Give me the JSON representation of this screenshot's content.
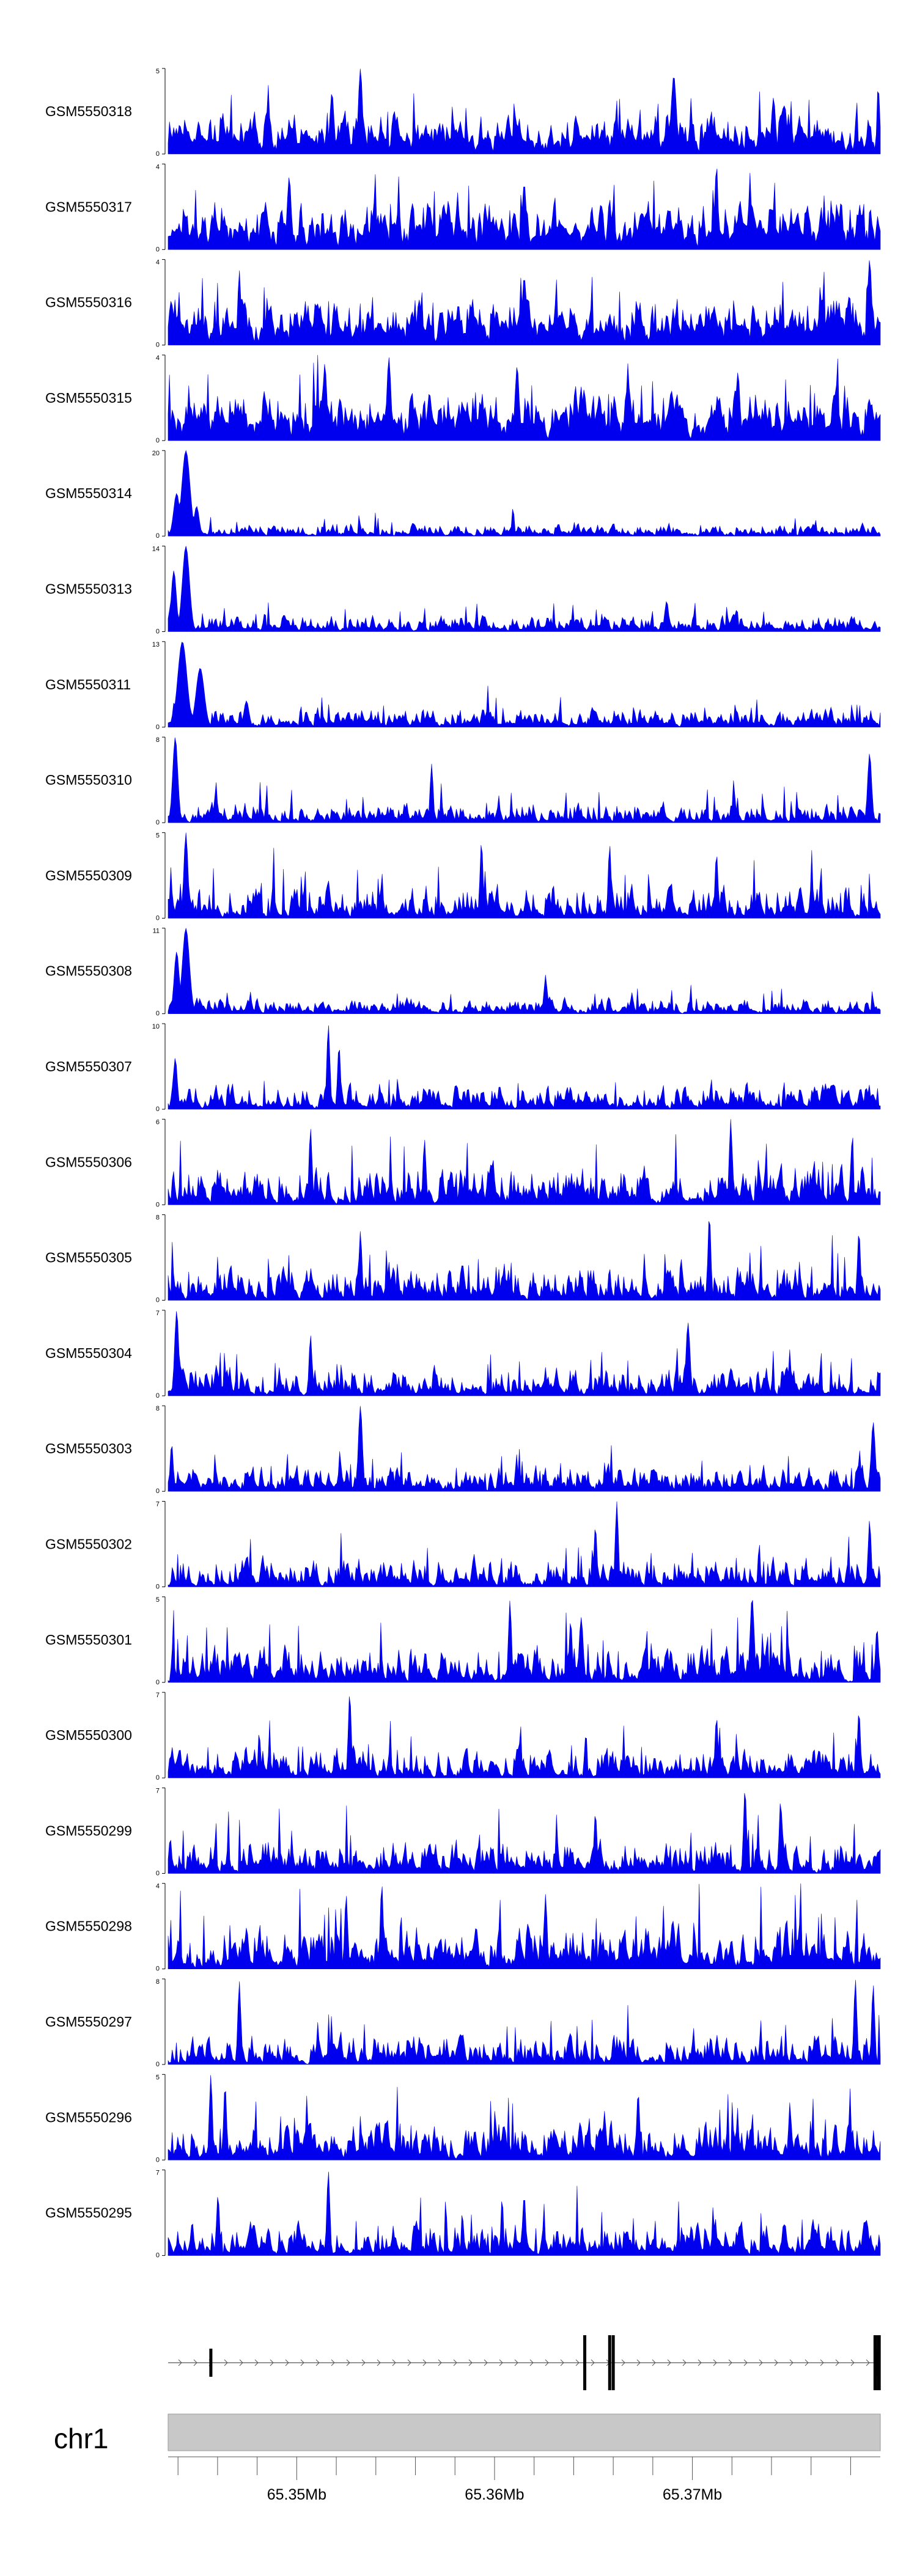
{
  "chart_data": {
    "type": "area",
    "series_color": "#0000ee",
    "tracks": [
      {
        "name": "GSM5550318",
        "ymax": 5,
        "ymin": 0,
        "seed": 11,
        "base": 0.28,
        "spread": 0.22,
        "peaks": [
          [
            0.27,
            5.0,
            0.004
          ],
          [
            0.71,
            4.6,
            0.005
          ],
          [
            0.23,
            3.6,
            0.004
          ],
          [
            0.85,
            3.3,
            0.004
          ]
        ]
      },
      {
        "name": "GSM5550317",
        "ymax": 4,
        "ymin": 0,
        "seed": 12,
        "base": 0.34,
        "spread": 0.26,
        "peaks": [
          [
            0.77,
            4.0,
            0.003
          ],
          [
            0.17,
            3.4,
            0.004
          ],
          [
            0.5,
            3.1,
            0.004
          ]
        ]
      },
      {
        "name": "GSM5550316",
        "ymax": 4,
        "ymin": 0,
        "seed": 13,
        "base": 0.3,
        "spread": 0.25,
        "peaks": [
          [
            0.985,
            4.0,
            0.004
          ],
          [
            0.1,
            3.5,
            0.003
          ],
          [
            0.5,
            3.2,
            0.004
          ]
        ]
      },
      {
        "name": "GSM5550315",
        "ymax": 4,
        "ymin": 0,
        "seed": 14,
        "base": 0.38,
        "spread": 0.26,
        "peaks": [
          [
            0.31,
            3.9,
            0.004
          ],
          [
            0.22,
            3.6,
            0.004
          ],
          [
            0.49,
            3.5,
            0.004
          ],
          [
            0.8,
            3.2,
            0.004
          ]
        ]
      },
      {
        "name": "GSM5550314",
        "ymax": 20,
        "ymin": 0,
        "seed": 15,
        "base": 0.03,
        "spread": 0.08,
        "peaks": [
          [
            0.025,
            20.0,
            0.008
          ],
          [
            0.012,
            10.0,
            0.006
          ],
          [
            0.04,
            7.0,
            0.005
          ]
        ]
      },
      {
        "name": "GSM5550313",
        "ymax": 14,
        "ymin": 0,
        "seed": 16,
        "base": 0.05,
        "spread": 0.1,
        "peaks": [
          [
            0.025,
            14.0,
            0.007
          ],
          [
            0.008,
            10.0,
            0.005
          ],
          [
            0.7,
            5.0,
            0.004
          ]
        ]
      },
      {
        "name": "GSM5550311",
        "ymax": 13,
        "ymin": 0,
        "seed": 17,
        "base": 0.06,
        "spread": 0.12,
        "peaks": [
          [
            0.02,
            13.0,
            0.009
          ],
          [
            0.045,
            9.0,
            0.008
          ],
          [
            0.11,
            4.0,
            0.005
          ]
        ]
      },
      {
        "name": "GSM5550310",
        "ymax": 8,
        "ymin": 0,
        "seed": 18,
        "base": 0.04,
        "spread": 0.14,
        "peaks": [
          [
            0.01,
            8.0,
            0.005
          ],
          [
            0.37,
            5.5,
            0.003
          ],
          [
            0.985,
            6.5,
            0.004
          ]
        ]
      },
      {
        "name": "GSM5550309",
        "ymax": 5,
        "ymin": 0,
        "seed": 19,
        "base": 0.06,
        "spread": 0.22,
        "peaks": [
          [
            0.025,
            5.0,
            0.004
          ],
          [
            0.44,
            4.5,
            0.003
          ],
          [
            0.62,
            4.3,
            0.003
          ],
          [
            0.77,
            3.8,
            0.003
          ]
        ]
      },
      {
        "name": "GSM5550308",
        "ymax": 11,
        "ymin": 0,
        "seed": 20,
        "base": 0.04,
        "spread": 0.1,
        "peaks": [
          [
            0.025,
            11.0,
            0.007
          ],
          [
            0.012,
            8.0,
            0.005
          ],
          [
            0.53,
            5.0,
            0.003
          ]
        ]
      },
      {
        "name": "GSM5550307",
        "ymax": 10,
        "ymin": 0,
        "seed": 21,
        "base": 0.06,
        "spread": 0.16,
        "peaks": [
          [
            0.225,
            10.0,
            0.003
          ],
          [
            0.24,
            7.5,
            0.003
          ],
          [
            0.01,
            6.0,
            0.004
          ]
        ]
      },
      {
        "name": "GSM5550306",
        "ymax": 6,
        "ymin": 0,
        "seed": 22,
        "base": 0.07,
        "spread": 0.26,
        "peaks": [
          [
            0.79,
            6.0,
            0.003
          ],
          [
            0.2,
            5.4,
            0.003
          ],
          [
            0.36,
            4.6,
            0.003
          ]
        ]
      },
      {
        "name": "GSM5550305",
        "ymax": 8,
        "ymin": 0,
        "seed": 23,
        "base": 0.06,
        "spread": 0.22,
        "peaks": [
          [
            0.76,
            8.0,
            0.003
          ],
          [
            0.27,
            6.5,
            0.003
          ],
          [
            0.97,
            6.5,
            0.003
          ]
        ]
      },
      {
        "name": "GSM5550304",
        "ymax": 7,
        "ymin": 0,
        "seed": 24,
        "base": 0.06,
        "spread": 0.2,
        "peaks": [
          [
            0.012,
            7.0,
            0.004
          ],
          [
            0.73,
            6.0,
            0.004
          ],
          [
            0.2,
            5.0,
            0.003
          ]
        ]
      },
      {
        "name": "GSM5550303",
        "ymax": 8,
        "ymin": 0,
        "seed": 25,
        "base": 0.08,
        "spread": 0.16,
        "peaks": [
          [
            0.27,
            8.0,
            0.004
          ],
          [
            0.99,
            6.5,
            0.004
          ],
          [
            0.005,
            4.5,
            0.003
          ]
        ]
      },
      {
        "name": "GSM5550302",
        "ymax": 7,
        "ymin": 0,
        "seed": 26,
        "base": 0.05,
        "spread": 0.2,
        "peaks": [
          [
            0.63,
            7.0,
            0.003
          ],
          [
            0.985,
            5.5,
            0.003
          ],
          [
            0.6,
            5.0,
            0.003
          ]
        ]
      },
      {
        "name": "GSM5550301",
        "ymax": 5,
        "ymin": 0,
        "seed": 27,
        "base": 0.05,
        "spread": 0.24,
        "peaks": [
          [
            0.82,
            5.0,
            0.004
          ],
          [
            0.48,
            4.8,
            0.003
          ],
          [
            0.58,
            3.8,
            0.004
          ]
        ]
      },
      {
        "name": "GSM5550300",
        "ymax": 7,
        "ymin": 0,
        "seed": 28,
        "base": 0.06,
        "spread": 0.2,
        "peaks": [
          [
            0.255,
            7.0,
            0.003
          ],
          [
            0.97,
            5.5,
            0.003
          ],
          [
            0.77,
            5.0,
            0.003
          ]
        ]
      },
      {
        "name": "GSM5550299",
        "ymax": 7,
        "ymin": 0,
        "seed": 29,
        "base": 0.08,
        "spread": 0.22,
        "peaks": [
          [
            0.81,
            7.0,
            0.003
          ],
          [
            0.86,
            6.0,
            0.003
          ],
          [
            0.6,
            5.0,
            0.003
          ]
        ]
      },
      {
        "name": "GSM5550298",
        "ymax": 4,
        "ymin": 0,
        "seed": 30,
        "base": 0.12,
        "spread": 0.28,
        "peaks": [
          [
            0.3,
            4.0,
            0.003
          ],
          [
            0.53,
            3.5,
            0.003
          ],
          [
            0.25,
            3.5,
            0.003
          ]
        ]
      },
      {
        "name": "GSM5550297",
        "ymax": 8,
        "ymin": 0,
        "seed": 31,
        "base": 0.05,
        "spread": 0.2,
        "peaks": [
          [
            0.965,
            8.0,
            0.003
          ],
          [
            0.1,
            7.8,
            0.003
          ],
          [
            0.99,
            7.5,
            0.003
          ]
        ]
      },
      {
        "name": "GSM5550296",
        "ymax": 5,
        "ymin": 0,
        "seed": 32,
        "base": 0.08,
        "spread": 0.24,
        "peaks": [
          [
            0.06,
            5.0,
            0.003
          ],
          [
            0.08,
            4.4,
            0.003
          ],
          [
            0.66,
            4.0,
            0.003
          ]
        ]
      },
      {
        "name": "GSM5550295",
        "ymax": 7,
        "ymin": 0,
        "seed": 33,
        "base": 0.07,
        "spread": 0.22,
        "peaks": [
          [
            0.225,
            7.0,
            0.003
          ],
          [
            0.5,
            5.0,
            0.003
          ],
          [
            0.07,
            5.0,
            0.003
          ]
        ]
      }
    ],
    "gene_track": {
      "exons": [
        0.06,
        0.585,
        0.62,
        0.625,
        0.993,
        0.998
      ],
      "direction": "plus"
    },
    "chromosome": "chr1",
    "x_axis": {
      "range_mb": [
        65.3435,
        65.3795
      ],
      "tick_labels": [
        "65.35Mb",
        "65.36Mb",
        "65.37Mb"
      ],
      "tick_values_mb": [
        65.35,
        65.36,
        65.37
      ],
      "minor_step_mb": 0.002
    }
  }
}
